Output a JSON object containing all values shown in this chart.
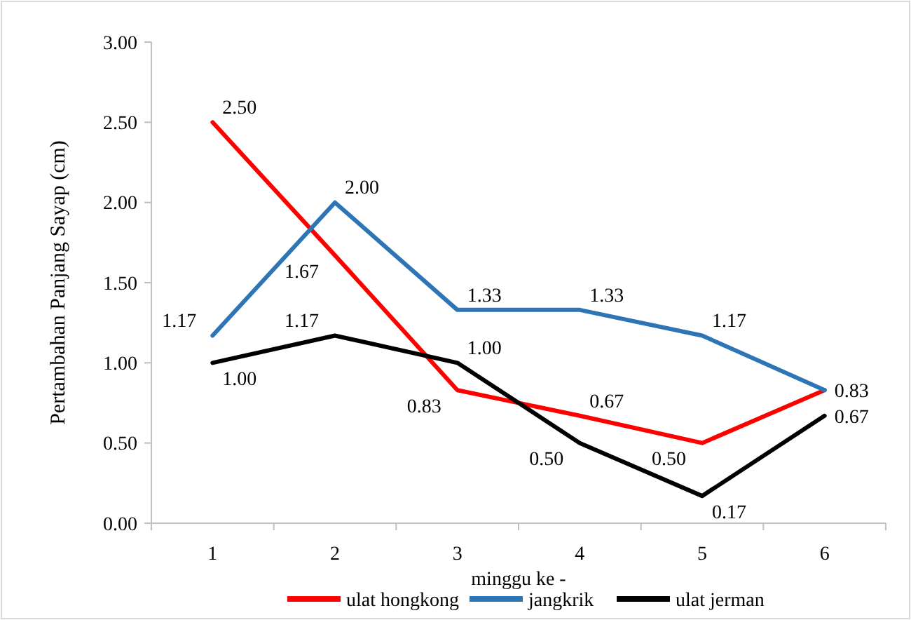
{
  "chart_data": {
    "type": "line",
    "ylabel": "Pertambahan Panjang Sayap (cm)",
    "xlabel": "minggu ke -",
    "categories": [
      "1",
      "2",
      "3",
      "4",
      "5",
      "6"
    ],
    "series": [
      {
        "name": "ulat hongkong",
        "color": "#ff0000",
        "values": [
          2.5,
          1.67,
          0.83,
          0.67,
          0.5,
          0.83
        ],
        "value_labels": [
          "2.50",
          "1.67",
          "0.83",
          "0.67",
          "0.50",
          "0.83"
        ]
      },
      {
        "name": "jangkrik",
        "color": "#2e75b6",
        "values": [
          1.17,
          2.0,
          1.33,
          1.33,
          1.17,
          0.83
        ],
        "value_labels": [
          "1.17",
          "2.00",
          "1.33",
          "1.33",
          "1.17",
          null
        ]
      },
      {
        "name": "ulat jerman",
        "color": "#000000",
        "values": [
          1.0,
          1.17,
          1.0,
          0.5,
          0.17,
          0.67
        ],
        "value_labels": [
          "1.00",
          "1.17",
          "1.00",
          "0.50",
          "0.17",
          "0.67"
        ]
      }
    ],
    "ylim": [
      0,
      3
    ],
    "yticks": [
      {
        "value": 0,
        "label": "0.00"
      },
      {
        "value": 0.5,
        "label": "0.50"
      },
      {
        "value": 1,
        "label": "1.00"
      },
      {
        "value": 1.5,
        "label": "1.50"
      },
      {
        "value": 2,
        "label": "2.00"
      },
      {
        "value": 2.5,
        "label": "2.50"
      },
      {
        "value": 3,
        "label": "3.00"
      }
    ],
    "data_labels": true,
    "legend": "bottom",
    "grid": false,
    "marker": "none",
    "line_style": "solid"
  }
}
